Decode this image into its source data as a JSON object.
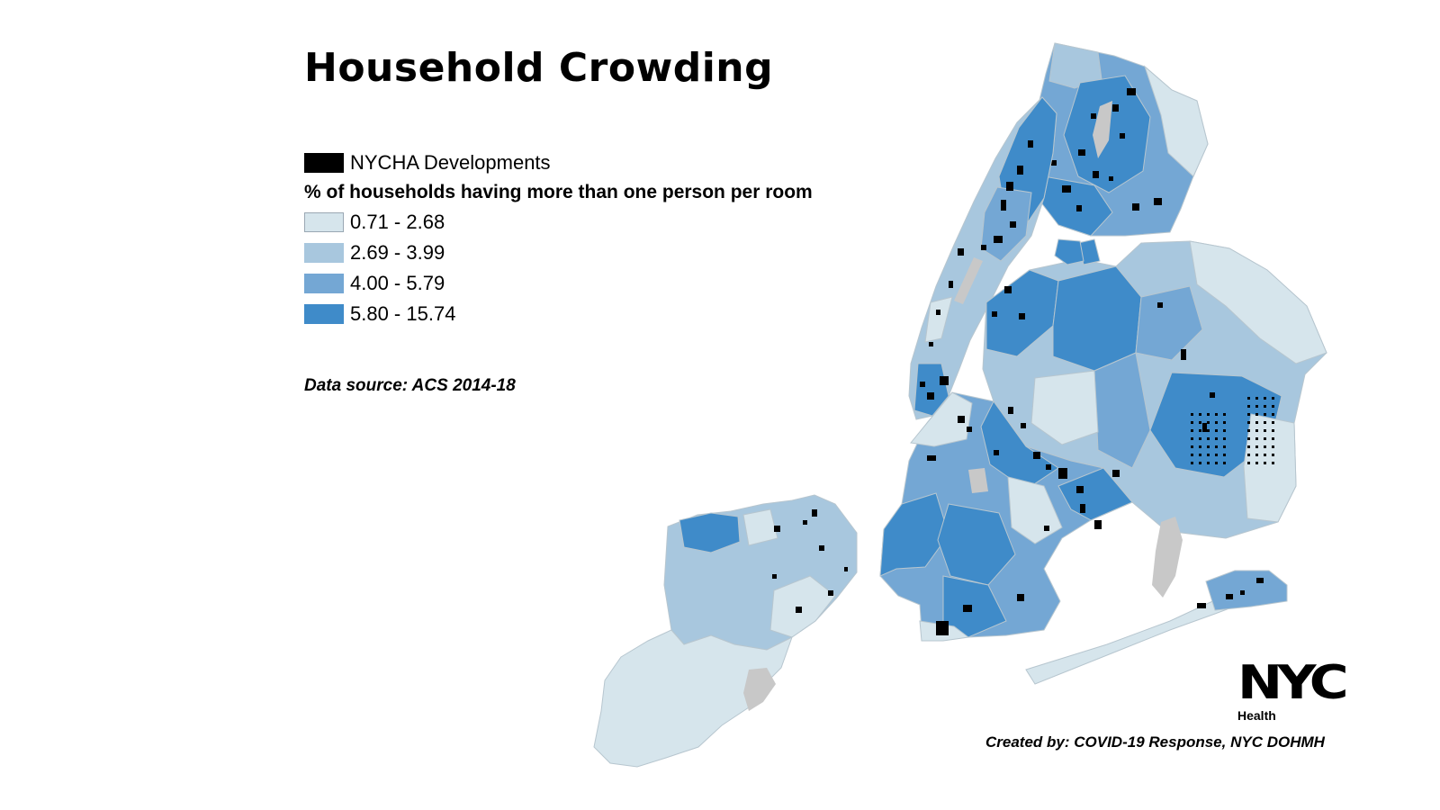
{
  "title": "Household Crowding",
  "legend": {
    "nycha_label": "NYCHA Developments",
    "nycha_color": "#000000",
    "heading": "% of households having more than one person per room",
    "classes": [
      {
        "label": "0.71 - 2.68",
        "color": "#d6e5ec"
      },
      {
        "label": "2.69 - 3.99",
        "color": "#a8c7de"
      },
      {
        "label": "4.00 - 5.79",
        "color": "#74a7d4"
      },
      {
        "label": "5.80 - 15.74",
        "color": "#3f8bc9"
      }
    ]
  },
  "no_data_color": "#c8c8c8",
  "data_source": "Data source:  ACS 2014-18",
  "credit": "Created by: COVID-19 Response, NYC DOHMH",
  "logo": {
    "mark": "NYC",
    "subtitle": "Health"
  }
}
